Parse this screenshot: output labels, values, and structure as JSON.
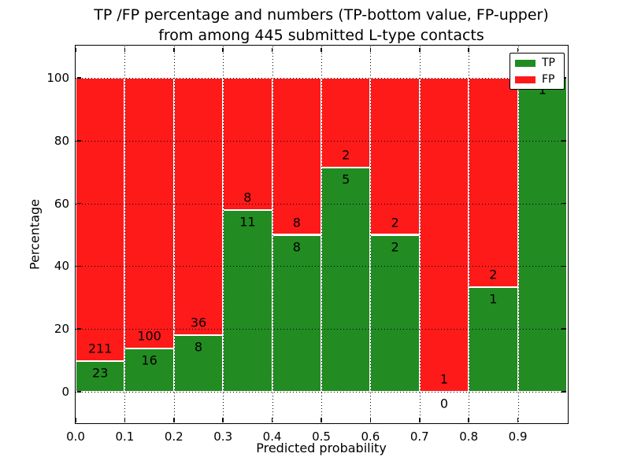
{
  "figure": {
    "title_line1": "TP /FP percentage and numbers (TP-bottom value, FP-upper)",
    "title_line2": "from among 445 submitted L-type contacts",
    "xlabel": "Predicted probability",
    "ylabel": "Percentage"
  },
  "legend": {
    "position": "upper right",
    "items": [
      {
        "label": "TP",
        "color": "#228b22"
      },
      {
        "label": "FP",
        "color": "#ff1a1a"
      }
    ]
  },
  "chart_data": {
    "type": "bar",
    "stacked": true,
    "normalized": "each bin stacks to 100%; labels show raw counts (TP bottom value, FP upper)",
    "title": "TP /FP percentage and numbers (TP-bottom value, FP-upper) from among 445 submitted L-type contacts",
    "xlabel": "Predicted probability",
    "ylabel": "Percentage",
    "total_contacts": 445,
    "xlim": [
      0.0,
      1.0
    ],
    "ylim": [
      -10,
      110
    ],
    "x_tick_values": [
      0.0,
      0.1,
      0.2,
      0.3,
      0.4,
      0.5,
      0.6,
      0.7,
      0.8,
      0.9
    ],
    "x_tick_labels": [
      "0.0",
      "0.1",
      "0.2",
      "0.3",
      "0.4",
      "0.5",
      "0.6",
      "0.7",
      "0.8",
      "0.9"
    ],
    "y_tick_values": [
      0,
      20,
      40,
      60,
      80,
      100
    ],
    "bin_edges": [
      0.0,
      0.1,
      0.2,
      0.3,
      0.4,
      0.5,
      0.6,
      0.7,
      0.8,
      0.9,
      1.0
    ],
    "series": [
      {
        "name": "TP",
        "color": "#228b22",
        "values": [
          23,
          16,
          8,
          11,
          8,
          5,
          2,
          0,
          1,
          1
        ]
      },
      {
        "name": "FP",
        "color": "#ff1a1a",
        "values": [
          211,
          100,
          36,
          8,
          8,
          2,
          2,
          1,
          2,
          0
        ]
      }
    ],
    "tp_percent_of_bin": [
      9.83,
      13.79,
      18.18,
      57.89,
      50.0,
      71.43,
      50.0,
      0.0,
      33.33,
      100.0
    ],
    "fp_label_shown": [
      true,
      true,
      true,
      true,
      true,
      true,
      true,
      true,
      true,
      false
    ],
    "grid": "dotted",
    "legend_position": "upper right",
    "colors": {
      "tp": "#228b22",
      "fp": "#ff1a1a",
      "grid": "#000000",
      "background": "#ffffff"
    }
  }
}
